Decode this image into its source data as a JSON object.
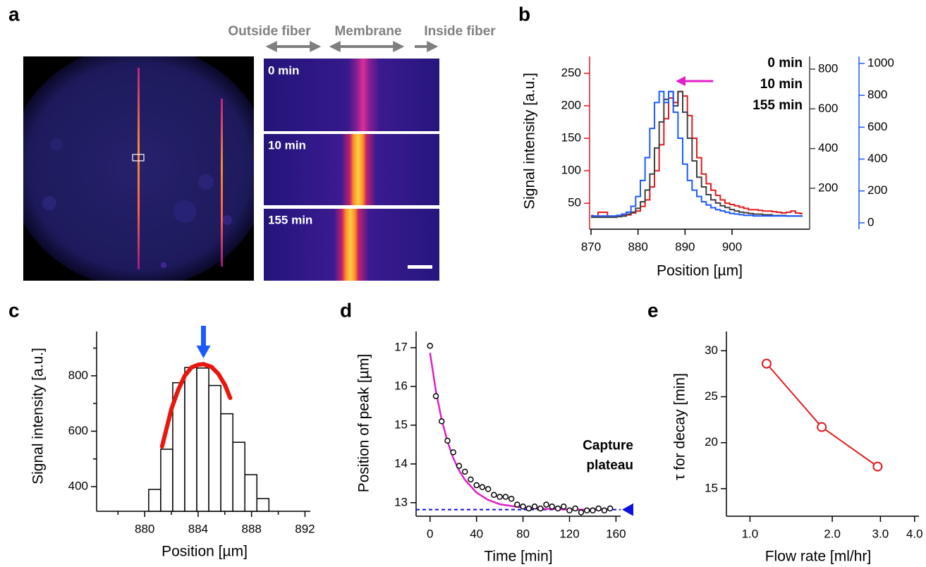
{
  "image_panel": {
    "panel": "a",
    "regions": [
      "Outside fiber",
      "Membrane",
      "Inside fiber"
    ],
    "timepoints": [
      "0 min",
      "10 min",
      "155 min"
    ]
  },
  "chart_data": [
    {
      "panel": "b",
      "type": "line",
      "step": true,
      "xlabel": "Position [µm]",
      "ylabel": "Signal intensity [a.u.]",
      "x": [
        870,
        871,
        872,
        873,
        874,
        875,
        876,
        877,
        878,
        879,
        880,
        881,
        882,
        883,
        884,
        885,
        886,
        887,
        888,
        889,
        890,
        891,
        892,
        893,
        894,
        895,
        896,
        897,
        898,
        899,
        900,
        901,
        902,
        903,
        904,
        905,
        906,
        907,
        908,
        909,
        910,
        911,
        912,
        913,
        914,
        915
      ],
      "xlim": [
        869.7,
        916.5
      ],
      "xticks": [
        870,
        880,
        890,
        900
      ],
      "ylim": [
        10,
        276
      ],
      "yticks": [
        50,
        100,
        150,
        200,
        250
      ],
      "y2lim": [
        -6,
        864
      ],
      "y2ticks": [
        200,
        400,
        600,
        800
      ],
      "y3lim": [
        -40,
        1044
      ],
      "y3ticks": [
        0,
        200,
        400,
        600,
        800,
        1000
      ],
      "colored_axes": true,
      "legend": "top-right",
      "series": [
        {
          "name": "0 min",
          "color": "#e31a1c",
          "axis": "y",
          "values": [
            31,
            30,
            36,
            36,
            30,
            30,
            30,
            31,
            32,
            35,
            38,
            45,
            55,
            75,
            100,
            140,
            180,
            212,
            205,
            222,
            215,
            185,
            150,
            120,
            95,
            80,
            70,
            62,
            55,
            50,
            48,
            46,
            44,
            42,
            40,
            40,
            39,
            38,
            38,
            37,
            36,
            35,
            36,
            38,
            35,
            34
          ]
        },
        {
          "name": "10 min",
          "color": "#404040",
          "axis": "y2",
          "values": [
            54,
            54,
            54,
            54,
            54,
            54,
            57,
            60,
            70,
            80,
            99,
            132,
            191,
            272,
            403,
            534,
            648,
            687,
            615,
            687,
            583,
            452,
            338,
            256,
            207,
            168,
            142,
            126,
            112,
            103,
            93,
            86,
            80,
            77,
            73,
            70,
            70,
            67,
            67,
            63,
            63,
            63,
            60,
            60,
            60,
            60
          ]
        },
        {
          "name": "155 min",
          "color": "#1a5aff",
          "axis": "y3",
          "values": [
            43,
            43,
            43,
            43,
            43,
            43,
            47,
            55,
            67,
            104,
            165,
            266,
            409,
            592,
            755,
            824,
            755,
            824,
            694,
            531,
            368,
            266,
            205,
            165,
            132,
            112,
            95,
            83,
            75,
            67,
            59,
            55,
            51,
            47,
            47,
            43,
            43,
            43,
            43,
            43,
            43,
            43,
            43,
            43,
            43,
            43
          ]
        }
      ],
      "arrow": {
        "x": [
          896,
          888
        ],
        "y": 238,
        "color": "#e020c8"
      }
    },
    {
      "panel": "c",
      "type": "histogram",
      "xlabel": "Position [µm]",
      "ylabel": "Signal intensity [a.u.]",
      "bins": [
        880.3,
        881.2,
        882.1,
        883.0,
        883.9,
        884.8,
        885.7,
        886.6,
        887.5,
        888.4,
        889.3
      ],
      "values": [
        390,
        535,
        775,
        830,
        828,
        765,
        663,
        560,
        443,
        357
      ],
      "color": "#ffffff",
      "edgecolor": "#000000",
      "xlim": [
        876.4,
        892.4
      ],
      "xticks": [
        880,
        884,
        888,
        892
      ],
      "xminorticks": [
        878,
        882,
        886,
        890
      ],
      "ylim": [
        311,
        960
      ],
      "yticks": [
        400,
        600,
        800
      ],
      "yminorticks": [
        500,
        700,
        900
      ],
      "fit": {
        "x": [
          881.3,
          882,
          882.5,
          883,
          883.5,
          884,
          884.4,
          885,
          885.5,
          886,
          886.4
        ],
        "values": [
          545,
          680,
          748,
          800,
          830,
          840,
          842,
          832,
          808,
          768,
          720
        ],
        "color": "#e8160c"
      },
      "peak_arrow": {
        "x": 884.4,
        "color": "#1a5aff"
      }
    },
    {
      "panel": "d",
      "type": "scatter",
      "xlabel": "Time [min]",
      "ylabel": "Position of peak [µm]",
      "x": [
        0,
        5,
        10,
        15,
        20,
        25,
        30,
        35,
        40,
        45,
        50,
        55,
        60,
        65,
        70,
        75,
        80,
        85,
        90,
        95,
        100,
        105,
        110,
        115,
        120,
        125,
        130,
        135,
        140,
        145,
        150,
        155
      ],
      "values": [
        17.05,
        15.75,
        15.1,
        14.6,
        14.3,
        13.95,
        13.8,
        13.6,
        13.45,
        13.4,
        13.35,
        13.2,
        13.15,
        13.15,
        13.1,
        12.95,
        12.9,
        12.85,
        12.9,
        12.85,
        12.95,
        12.9,
        12.85,
        12.9,
        12.8,
        12.85,
        12.75,
        12.8,
        12.8,
        12.85,
        12.8,
        12.85
      ],
      "marker_color": "#000000",
      "xlim": [
        -12,
        164
      ],
      "xticks": [
        0,
        40,
        80,
        120,
        160
      ],
      "ylim": [
        12.65,
        17.42
      ],
      "yticks": [
        13,
        14,
        15,
        16,
        17
      ],
      "fit": {
        "x": [
          0,
          5,
          10,
          15,
          20,
          25,
          30,
          40,
          50,
          60,
          80,
          100,
          120,
          140,
          155
        ],
        "values": [
          16.87,
          15.89,
          15.14,
          14.58,
          14.15,
          13.83,
          13.59,
          13.26,
          13.07,
          12.96,
          12.87,
          12.84,
          12.82,
          12.82,
          12.82
        ],
        "color": "#e020c8"
      },
      "plateau": {
        "value": 12.82,
        "color": "#1010e0",
        "label": [
          "Capture",
          "plateau"
        ]
      }
    },
    {
      "panel": "e",
      "type": "line",
      "markers": true,
      "xscale": "log",
      "xlabel": "Flow rate [ml/hr]",
      "ylabel": "τ for decay [min]",
      "x": [
        1.15,
        1.83,
        2.93
      ],
      "series": [
        {
          "color": "#e31a1c",
          "values": [
            28.6,
            21.7,
            17.4
          ]
        }
      ],
      "xlim": [
        0.82,
        4.15
      ],
      "xticks": [
        {
          "value": 1,
          "label": "1.0"
        },
        {
          "value": 2,
          "label": "2.0"
        },
        {
          "value": 3,
          "label": "3.0"
        },
        {
          "value": 4,
          "label": "4.0"
        }
      ],
      "ylim": [
        12.0,
        32.1
      ],
      "yticks": [
        15,
        20,
        25,
        30
      ]
    }
  ]
}
